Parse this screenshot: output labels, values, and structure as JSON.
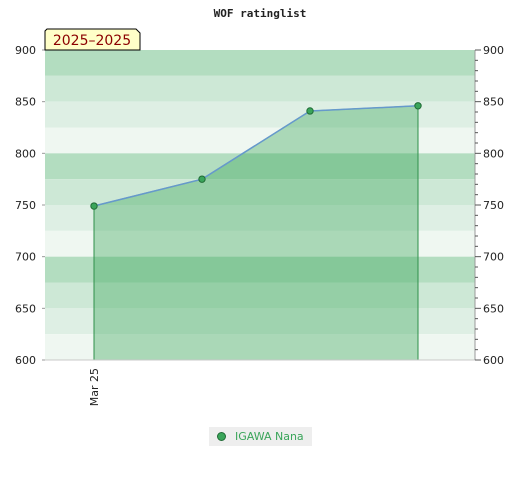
{
  "chart_data": {
    "type": "area",
    "title": "WOF ratinglist",
    "range_label": "2025–2025",
    "ylim": [
      600,
      900
    ],
    "yticks": [
      600,
      650,
      700,
      750,
      800,
      850,
      900
    ],
    "x_tick_labels": [
      "Mar 25"
    ],
    "grid": true,
    "legend_position": "bottom-center",
    "colors": {
      "fill": "#3aa55a",
      "line": "#6699cc",
      "marker": "#3aa55a",
      "band_dark": "#b3ddc0",
      "band_mid": "#cde8d6",
      "band_light": "#deefe4",
      "band_lightest": "#eff7f1"
    },
    "series": [
      {
        "name": "IGAWA Nana",
        "points": [
          {
            "x": 0,
            "y": 749
          },
          {
            "x": 1,
            "y": 775
          },
          {
            "x": 2,
            "y": 841
          },
          {
            "x": 3,
            "y": 846
          }
        ]
      }
    ]
  }
}
